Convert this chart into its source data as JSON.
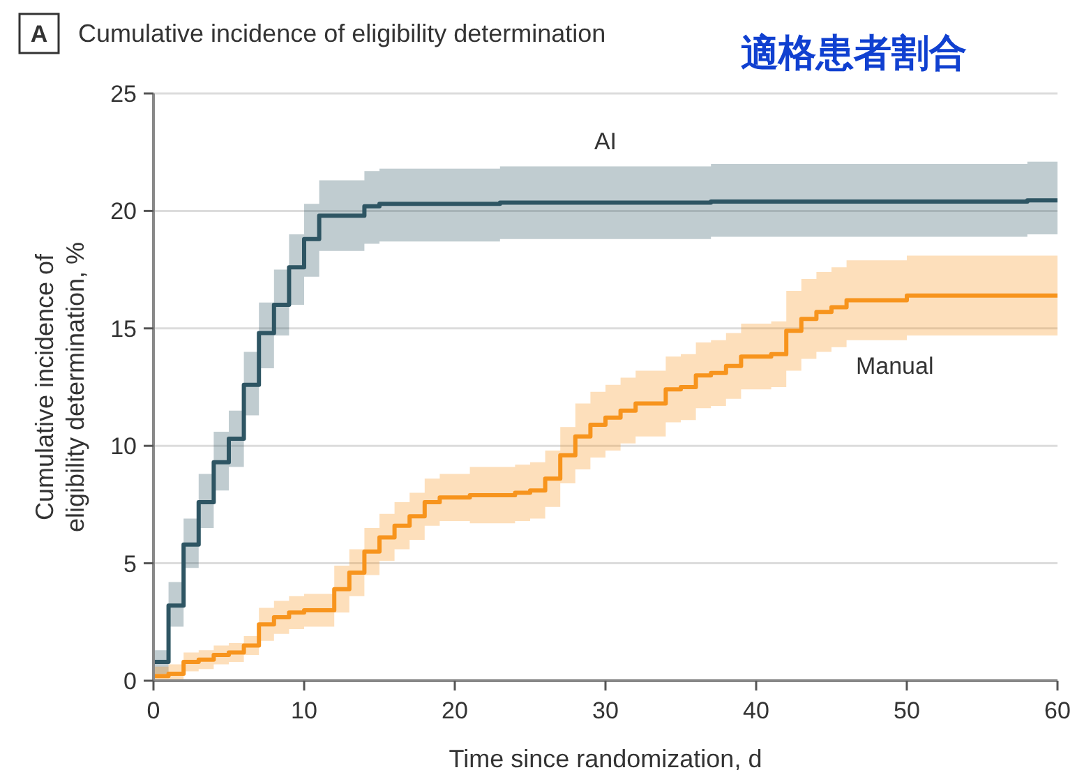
{
  "chart_data": {
    "type": "step",
    "title": "Cumulative incidence of eligibility determination",
    "xlabel": "Time since randomization, d",
    "ylabel": "Cumulative incidence of eligibility determination, %",
    "annotations": [
      "A",
      "適格患者割合"
    ],
    "xlim": [
      0,
      60
    ],
    "xticks": [
      0,
      10,
      20,
      30,
      40,
      50,
      60
    ],
    "ylim": [
      0,
      25
    ],
    "yticks": [
      0,
      5,
      10,
      15,
      20,
      25
    ],
    "grid": "y",
    "series": [
      {
        "name": "AI",
        "color": "#2e5563",
        "x": [
          0,
          1,
          2,
          3,
          4,
          5,
          6,
          7,
          8,
          9,
          10,
          11,
          14,
          15,
          23,
          37,
          58,
          60
        ],
        "values": [
          0.8,
          3.2,
          5.8,
          7.6,
          9.3,
          10.3,
          12.6,
          14.8,
          16.0,
          17.6,
          18.8,
          19.8,
          20.2,
          20.3,
          20.35,
          20.4,
          20.45,
          20.45
        ],
        "lower": [
          0.3,
          2.3,
          4.8,
          6.5,
          8.1,
          9.1,
          11.3,
          13.3,
          14.7,
          16.0,
          17.2,
          18.3,
          18.6,
          18.7,
          18.8,
          18.9,
          19.0,
          19.0
        ],
        "upper": [
          1.3,
          4.2,
          6.9,
          8.8,
          10.6,
          11.5,
          14.0,
          16.1,
          17.5,
          19.0,
          20.3,
          21.3,
          21.7,
          21.8,
          21.9,
          22.0,
          22.1,
          22.1
        ]
      },
      {
        "name": "Manual",
        "color": "#f7941d",
        "x": [
          0,
          1,
          2,
          3,
          4,
          5,
          6,
          7,
          8,
          9,
          10,
          12,
          13,
          14,
          15,
          16,
          17,
          18,
          19,
          21,
          24,
          25,
          26,
          27,
          28,
          29,
          30,
          31,
          32,
          34,
          35,
          36,
          37,
          38,
          39,
          41,
          42,
          43,
          44,
          45,
          46,
          50,
          60
        ],
        "values": [
          0.2,
          0.3,
          0.8,
          0.9,
          1.1,
          1.2,
          1.5,
          2.4,
          2.7,
          2.9,
          3.0,
          3.9,
          4.6,
          5.5,
          6.1,
          6.6,
          7.0,
          7.6,
          7.8,
          7.9,
          8.0,
          8.1,
          8.6,
          9.6,
          10.4,
          10.9,
          11.2,
          11.5,
          11.8,
          12.4,
          12.5,
          13.0,
          13.1,
          13.4,
          13.8,
          13.9,
          14.9,
          15.4,
          15.7,
          15.9,
          16.2,
          16.4,
          16.4
        ],
        "lower": [
          0,
          0,
          0.4,
          0.5,
          0.7,
          0.8,
          1.1,
          1.7,
          2.0,
          2.2,
          2.3,
          2.9,
          3.6,
          4.5,
          5.1,
          5.6,
          6.0,
          6.6,
          6.8,
          6.7,
          6.8,
          6.9,
          7.4,
          8.4,
          9.0,
          9.5,
          9.8,
          10.1,
          10.4,
          11.0,
          11.1,
          11.6,
          11.7,
          12.0,
          12.4,
          12.5,
          13.2,
          13.7,
          14.0,
          14.2,
          14.5,
          14.7,
          14.7
        ],
        "upper": [
          0.6,
          0.7,
          1.2,
          1.3,
          1.5,
          1.6,
          1.9,
          3.1,
          3.4,
          3.6,
          3.7,
          4.9,
          5.6,
          6.5,
          7.1,
          7.6,
          8.0,
          8.6,
          8.8,
          9.1,
          9.2,
          9.3,
          9.8,
          10.8,
          11.8,
          12.3,
          12.6,
          12.9,
          13.2,
          13.8,
          13.9,
          14.4,
          14.5,
          14.8,
          15.2,
          15.3,
          16.6,
          17.1,
          17.4,
          17.6,
          17.9,
          18.1,
          18.1
        ]
      }
    ]
  }
}
